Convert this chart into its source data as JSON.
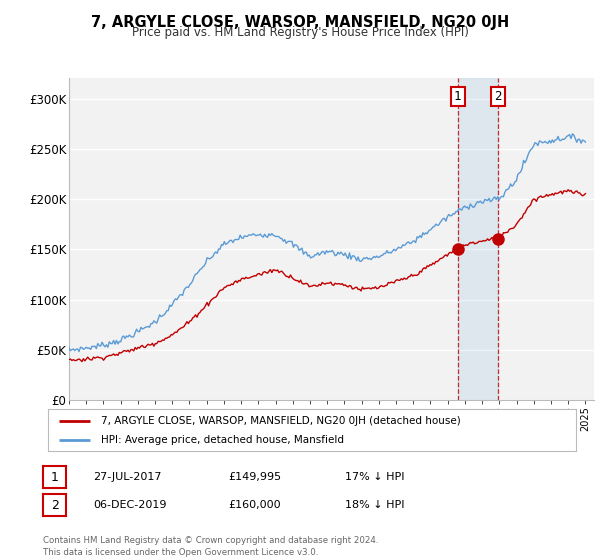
{
  "title": "7, ARGYLE CLOSE, WARSOP, MANSFIELD, NG20 0JH",
  "subtitle": "Price paid vs. HM Land Registry's House Price Index (HPI)",
  "legend_line1": "7, ARGYLE CLOSE, WARSOP, MANSFIELD, NG20 0JH (detached house)",
  "legend_line2": "HPI: Average price, detached house, Mansfield",
  "annotation1_date": "27-JUL-2017",
  "annotation1_price": "£149,995",
  "annotation1_hpi": "17% ↓ HPI",
  "annotation2_date": "06-DEC-2019",
  "annotation2_price": "£160,000",
  "annotation2_hpi": "18% ↓ HPI",
  "footer": "Contains HM Land Registry data © Crown copyright and database right 2024.\nThis data is licensed under the Open Government Licence v3.0.",
  "hpi_color": "#5b9bd5",
  "price_color": "#c00000",
  "bg_color": "#ffffff",
  "plot_bg_color": "#f2f2f2",
  "grid_color": "#ffffff",
  "ylim_min": 0,
  "ylim_max": 320000,
  "yticks": [
    0,
    50000,
    100000,
    150000,
    200000,
    250000,
    300000
  ],
  "ytick_labels": [
    "£0",
    "£50K",
    "£100K",
    "£150K",
    "£200K",
    "£250K",
    "£300K"
  ],
  "purchase1_year": 2017.58,
  "purchase1_value": 149995,
  "purchase2_year": 2019.92,
  "purchase2_value": 160000,
  "hpi_years": [
    1995,
    1996,
    1997,
    1998,
    1999,
    2000,
    2001,
    2002,
    2003,
    2004,
    2005,
    2006,
    2007,
    2008,
    2009,
    2010,
    2011,
    2012,
    2013,
    2014,
    2015,
    2016,
    2017,
    2018,
    2019,
    2020,
    2021,
    2022,
    2023,
    2024,
    2025
  ],
  "hpi_vals": [
    50000,
    52000,
    55000,
    60000,
    68000,
    78000,
    95000,
    115000,
    138000,
    155000,
    162000,
    165000,
    165000,
    155000,
    143000,
    148000,
    145000,
    140000,
    143000,
    150000,
    158000,
    170000,
    182000,
    192000,
    198000,
    200000,
    220000,
    255000,
    258000,
    262000,
    258000
  ],
  "price_years": [
    1995,
    1996,
    1997,
    1998,
    1999,
    2000,
    2001,
    2002,
    2003,
    2004,
    2005,
    2006,
    2007,
    2008,
    2009,
    2010,
    2011,
    2012,
    2013,
    2014,
    2015,
    2016,
    2017,
    2018,
    2019,
    2020,
    2021,
    2022,
    2023,
    2024,
    2025
  ],
  "price_vals": [
    40000,
    41000,
    43000,
    47000,
    52000,
    57000,
    65000,
    78000,
    95000,
    112000,
    120000,
    125000,
    130000,
    122000,
    113000,
    117000,
    115000,
    110000,
    112000,
    118000,
    124000,
    134000,
    145000,
    155000,
    158000,
    162000,
    175000,
    200000,
    205000,
    208000,
    204000
  ]
}
